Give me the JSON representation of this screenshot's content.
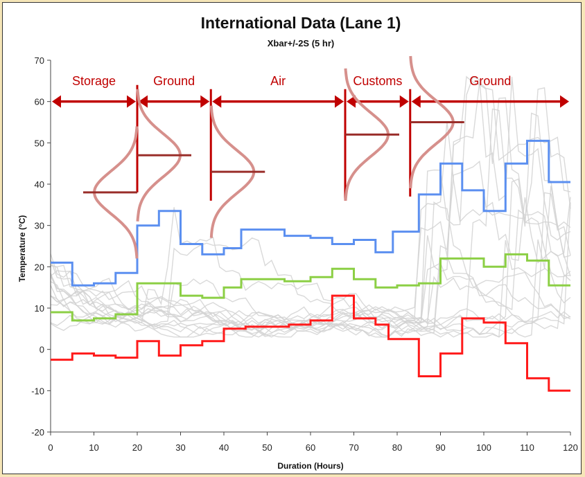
{
  "chart_data": {
    "type": "line",
    "title": "International Data (Lane 1)",
    "subtitle": "Xbar+/-2S (5 hr)",
    "xlabel": "Duration (Hours)",
    "ylabel": "Temperature (°C)",
    "xlim": [
      0,
      120
    ],
    "ylim": [
      -20,
      70
    ],
    "xticks": [
      0,
      10,
      20,
      30,
      40,
      50,
      60,
      70,
      80,
      90,
      100,
      110,
      120
    ],
    "yticks": [
      -20,
      -10,
      0,
      10,
      20,
      30,
      40,
      50,
      60,
      70
    ],
    "grid": false,
    "legend": "none",
    "colors": {
      "upper": "#5b8ff0",
      "mean": "#8ccf45",
      "lower": "#ff1a1a",
      "raw": "#d2d2d2",
      "phase": "#c00000",
      "distribution": "#d6908c",
      "distribution_peak": "#9a2e2a"
    },
    "series": [
      {
        "role": "upper",
        "values": [
          [
            0,
            21
          ],
          [
            5,
            21
          ],
          [
            5,
            15.5
          ],
          [
            10,
            15.5
          ],
          [
            10,
            16
          ],
          [
            15,
            16
          ],
          [
            15,
            18.5
          ],
          [
            20,
            18.5
          ],
          [
            20,
            30
          ],
          [
            25,
            30
          ],
          [
            25,
            33.5
          ],
          [
            30,
            33.5
          ],
          [
            30,
            25.5
          ],
          [
            35,
            25.5
          ],
          [
            35,
            23
          ],
          [
            40,
            23
          ],
          [
            40,
            24.5
          ],
          [
            44,
            24.5
          ],
          [
            44,
            29
          ],
          [
            54,
            29
          ],
          [
            54,
            27.5
          ],
          [
            60,
            27.5
          ],
          [
            60,
            27
          ],
          [
            65,
            27
          ],
          [
            65,
            25.5
          ],
          [
            70,
            25.5
          ],
          [
            70,
            26.5
          ],
          [
            75,
            26.5
          ],
          [
            75,
            23.5
          ],
          [
            79,
            23.5
          ],
          [
            79,
            28.5
          ],
          [
            85,
            28.5
          ],
          [
            85,
            37.5
          ],
          [
            90,
            37.5
          ],
          [
            90,
            45
          ],
          [
            95,
            45
          ],
          [
            95,
            38.5
          ],
          [
            100,
            38.5
          ],
          [
            100,
            33.5
          ],
          [
            105,
            33.5
          ],
          [
            105,
            45
          ],
          [
            110,
            45
          ],
          [
            110,
            50.5
          ],
          [
            115,
            50.5
          ],
          [
            115,
            40.5
          ],
          [
            120,
            40.5
          ]
        ]
      },
      {
        "role": "mean",
        "values": [
          [
            0,
            9
          ],
          [
            5,
            9
          ],
          [
            5,
            7
          ],
          [
            10,
            7
          ],
          [
            10,
            7.5
          ],
          [
            15,
            7.5
          ],
          [
            15,
            8.5
          ],
          [
            20,
            8.5
          ],
          [
            20,
            16
          ],
          [
            30,
            16
          ],
          [
            30,
            13
          ],
          [
            35,
            13
          ],
          [
            35,
            12.5
          ],
          [
            40,
            12.5
          ],
          [
            40,
            15
          ],
          [
            44,
            15
          ],
          [
            44,
            17
          ],
          [
            54,
            17
          ],
          [
            54,
            16.5
          ],
          [
            60,
            16.5
          ],
          [
            60,
            17.5
          ],
          [
            65,
            17.5
          ],
          [
            65,
            19.5
          ],
          [
            70,
            19.5
          ],
          [
            70,
            17
          ],
          [
            75,
            17
          ],
          [
            75,
            15
          ],
          [
            80,
            15
          ],
          [
            80,
            15.5
          ],
          [
            85,
            15.5
          ],
          [
            85,
            16
          ],
          [
            90,
            16
          ],
          [
            90,
            22
          ],
          [
            100,
            22
          ],
          [
            100,
            20
          ],
          [
            105,
            20
          ],
          [
            105,
            23
          ],
          [
            110,
            23
          ],
          [
            110,
            21.5
          ],
          [
            115,
            21.5
          ],
          [
            115,
            15.5
          ],
          [
            120,
            15.5
          ]
        ]
      },
      {
        "role": "lower",
        "values": [
          [
            0,
            -2.5
          ],
          [
            5,
            -2.5
          ],
          [
            5,
            -1
          ],
          [
            10,
            -1
          ],
          [
            10,
            -1.5
          ],
          [
            15,
            -1.5
          ],
          [
            15,
            -2
          ],
          [
            20,
            -2
          ],
          [
            20,
            2
          ],
          [
            25,
            2
          ],
          [
            25,
            -1.5
          ],
          [
            30,
            -1.5
          ],
          [
            30,
            1
          ],
          [
            35,
            1
          ],
          [
            35,
            2
          ],
          [
            40,
            2
          ],
          [
            40,
            5
          ],
          [
            45,
            5
          ],
          [
            45,
            5.5
          ],
          [
            55,
            5.5
          ],
          [
            55,
            6
          ],
          [
            60,
            6
          ],
          [
            60,
            7
          ],
          [
            65,
            7
          ],
          [
            65,
            13
          ],
          [
            70,
            13
          ],
          [
            70,
            7.5
          ],
          [
            75,
            7.5
          ],
          [
            75,
            6
          ],
          [
            78,
            6
          ],
          [
            78,
            2.5
          ],
          [
            85,
            2.5
          ],
          [
            85,
            -6.5
          ],
          [
            90,
            -6.5
          ],
          [
            90,
            -1
          ],
          [
            95,
            -1
          ],
          [
            95,
            7.5
          ],
          [
            100,
            7.5
          ],
          [
            100,
            6.5
          ],
          [
            105,
            6.5
          ],
          [
            105,
            1.5
          ],
          [
            110,
            1.5
          ],
          [
            110,
            -7
          ],
          [
            115,
            -7
          ],
          [
            115,
            -10
          ],
          [
            120,
            -10
          ]
        ]
      }
    ],
    "phases": [
      {
        "label": "Storage",
        "x_start": 0,
        "x_end": 20
      },
      {
        "label": "Ground",
        "x_start": 20,
        "x_end": 37
      },
      {
        "label": "Air",
        "x_start": 37,
        "x_end": 68
      },
      {
        "label": "Customs",
        "x_start": 68,
        "x_end": 83
      },
      {
        "label": "Ground",
        "x_start": 83,
        "x_end": 120
      }
    ],
    "phase_distributions": [
      {
        "x_base": 20,
        "mean": 38,
        "side": "left"
      },
      {
        "x_base": 20,
        "mean": 47,
        "side": "right"
      },
      {
        "x_base": 37,
        "mean": 43,
        "side": "right"
      },
      {
        "x_base": 68,
        "mean": 52,
        "side": "right"
      },
      {
        "x_base": 83,
        "mean": 55,
        "side": "right"
      }
    ]
  }
}
